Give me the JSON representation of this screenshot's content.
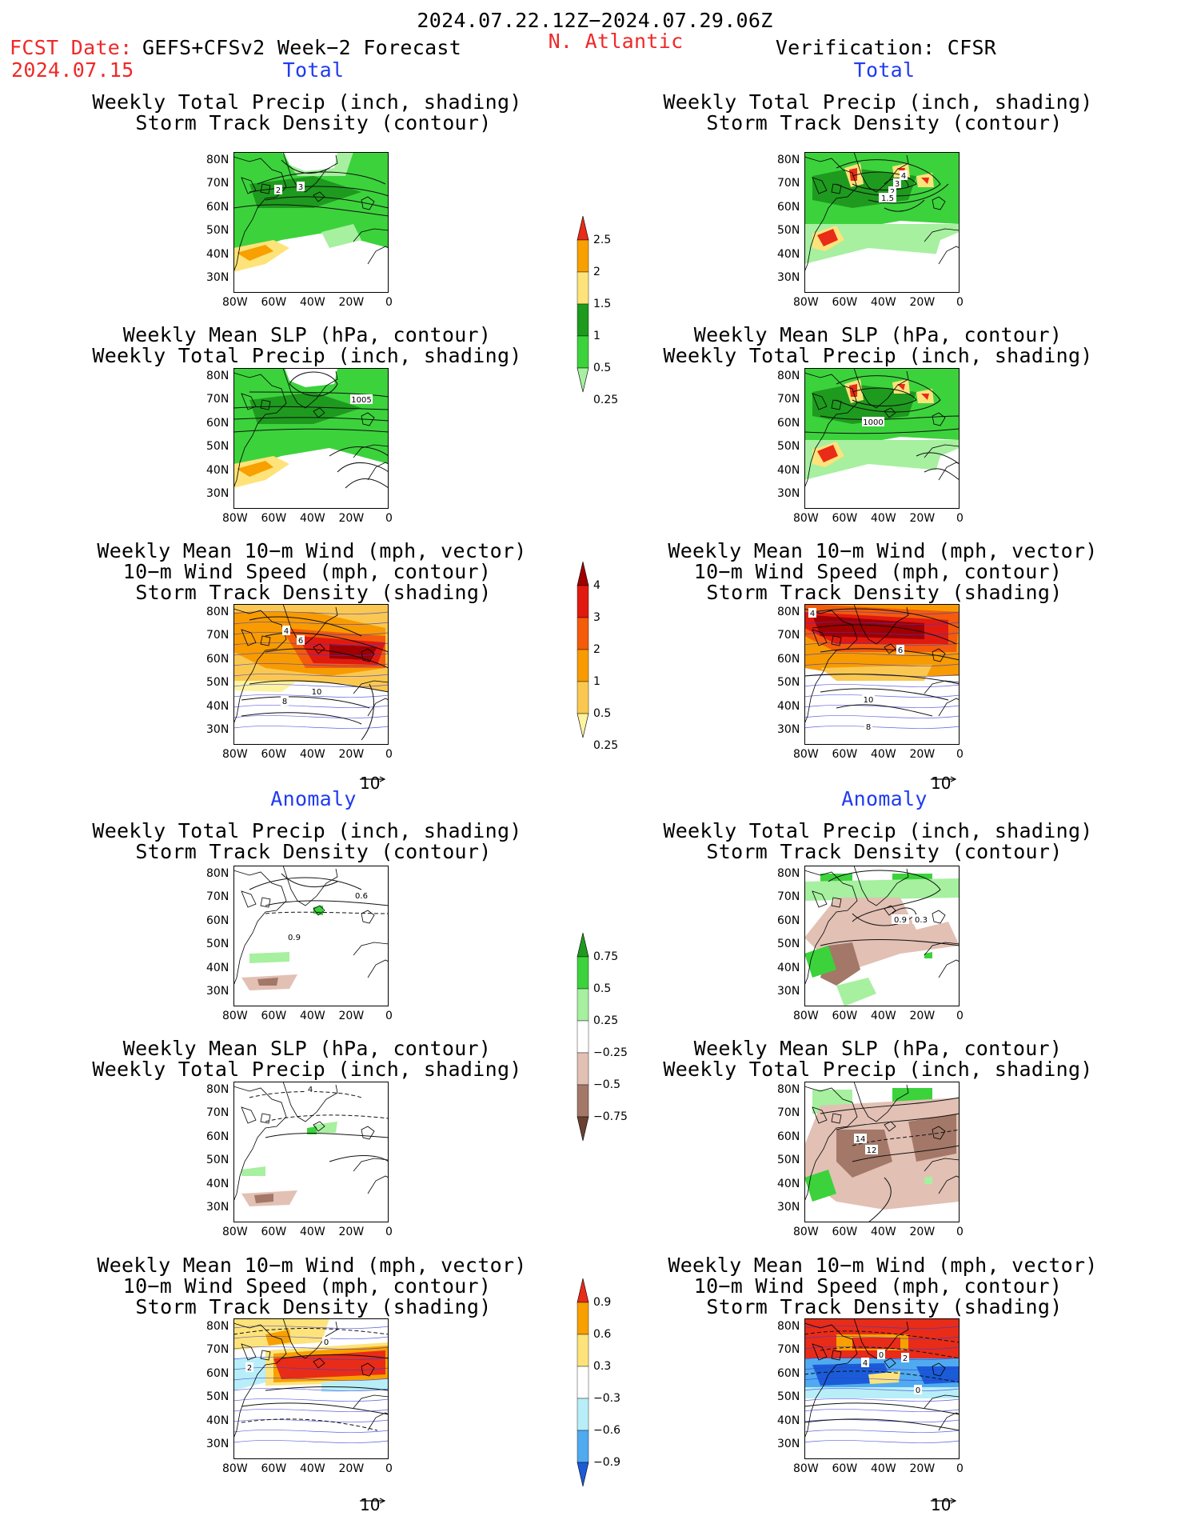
{
  "header": {
    "date_range": "2024.07.22.12Z−2024.07.29.06Z",
    "fcst_label": "FCST Date:",
    "fcst_model": "GEFS+CFSv2 Week−2 Forecast",
    "fcst_date": "2024.07.15",
    "region": "N. Atlantic",
    "verification": "Verification: CFSR"
  },
  "sections": {
    "total": "Total",
    "anomaly": "Anomaly"
  },
  "titles": {
    "precip_storm": [
      "Weekly Total Precip (inch, shading)",
      "Storm Track Density (contour)"
    ],
    "slp_precip": [
      "Weekly Mean SLP (hPa, contour)",
      "Weekly Total Precip (inch, shading)"
    ],
    "wind_storm": [
      "Weekly Mean 10−m Wind (mph, vector)",
      "10−m Wind Speed (mph, contour)",
      "Storm Track Density (shading)"
    ]
  },
  "axes": {
    "lat": [
      "80N",
      "70N",
      "60N",
      "50N",
      "40N",
      "30N"
    ],
    "lon": [
      "80W",
      "60W",
      "40W",
      "20W",
      "0"
    ]
  },
  "vector_ref": "10",
  "colorbars": {
    "precip_total": {
      "labels": [
        "2.5",
        "2",
        "1.5",
        "1",
        "0.5",
        "0.25"
      ],
      "colors": [
        "#e82c18",
        "#f7a000",
        "#fde37a",
        "#1e9a1e",
        "#3cd23c",
        "#a6f0a0"
      ]
    },
    "storm_total": {
      "labels": [
        "4",
        "3",
        "2",
        "1",
        "0.5",
        "0.25"
      ],
      "colors": [
        "#a00000",
        "#e11a10",
        "#f45b0a",
        "#f79b00",
        "#fac850",
        "#fdf3a0"
      ]
    },
    "precip_anom": {
      "labels": [
        "0.75",
        "0.5",
        "0.25",
        "−0.25",
        "−0.5",
        "−0.75"
      ],
      "colors": [
        "#1e9a1e",
        "#3cd23c",
        "#a6f0a0",
        "#ffffff",
        "#e2c0b4",
        "#a37868",
        "#6a4030"
      ]
    },
    "storm_anom": {
      "labels": [
        "0.9",
        "0.6",
        "0.3",
        "−0.3",
        "−0.6",
        "−0.9"
      ],
      "colors": [
        "#e82c18",
        "#f7a000",
        "#fde37a",
        "#ffffff",
        "#b8eef8",
        "#50aaf0",
        "#1a5cd8"
      ]
    }
  },
  "panels": {
    "fc_total_precip": {
      "contours": [
        "2",
        "3"
      ]
    },
    "fc_total_slp": {
      "contours": [
        "1005"
      ]
    },
    "fc_total_wind": {
      "contours": [
        "4",
        "6",
        "10",
        "8"
      ]
    },
    "vf_total_precip": {
      "contours": [
        "4",
        "3",
        "2",
        "1.5"
      ]
    },
    "vf_total_slp": {
      "contours": [
        "1000"
      ]
    },
    "vf_total_wind": {
      "contours": [
        "4",
        "6",
        "10",
        "8"
      ]
    },
    "fc_anom_precip": {
      "contours": [
        "0.6",
        "0.9"
      ]
    },
    "fc_anom_slp": {
      "contours": [
        "4"
      ]
    },
    "fc_anom_wind": {
      "contours": [
        "0",
        "2"
      ]
    },
    "vf_anom_precip": {
      "contours": [
        "0.9",
        "0.3"
      ]
    },
    "vf_anom_slp": {
      "contours": [
        "14",
        "12"
      ]
    },
    "vf_anom_wind": {
      "contours": [
        "0",
        "4",
        "2",
        "0"
      ]
    }
  }
}
